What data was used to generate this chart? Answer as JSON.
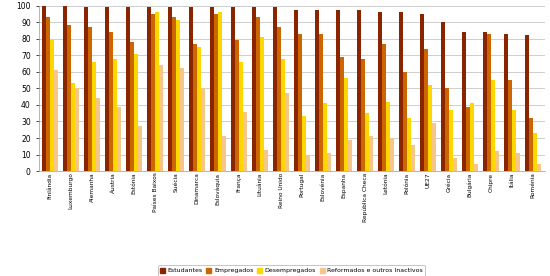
{
  "countries": [
    "Finlândia",
    "Luxemburgo",
    "Alemanha",
    "Áustria",
    "Estónia",
    "Países Baixos",
    "Suécia",
    "Dinamarca",
    "Eslováquia",
    "França",
    "Lituânia",
    "Reino Unido",
    "Portugal",
    "Eslovénia",
    "Espanha",
    "República Checa",
    "Letónia",
    "Polónia",
    "UE27",
    "Grécia",
    "Bulgária",
    "Chipre",
    "Itália",
    "Roménia"
  ],
  "series": {
    "Estudantes": [
      100,
      100,
      99,
      99,
      99,
      99,
      99,
      99,
      99,
      99,
      99,
      99,
      97,
      97,
      97,
      97,
      96,
      96,
      95,
      90,
      84,
      84,
      83,
      82
    ],
    "Empregados": [
      93,
      88,
      87,
      84,
      78,
      95,
      93,
      77,
      95,
      79,
      93,
      87,
      83,
      83,
      69,
      68,
      77,
      60,
      74,
      50,
      39,
      83,
      55,
      32
    ],
    "Desempregados": [
      79,
      53,
      66,
      68,
      71,
      96,
      91,
      75,
      96,
      66,
      81,
      68,
      33,
      41,
      56,
      35,
      42,
      32,
      52,
      37,
      41,
      55,
      37,
      23
    ],
    "Reformados e outros Inactivos": [
      61,
      50,
      44,
      39,
      27,
      64,
      62,
      50,
      21,
      36,
      13,
      47,
      10,
      11,
      19,
      21,
      20,
      16,
      29,
      8,
      4,
      12,
      11,
      4
    ]
  },
  "colors": {
    "Estudantes": "#8B2500",
    "Empregados": "#CC6600",
    "Desempregados": "#FFD700",
    "Reformados e outros Inactivos": "#F5C58A"
  },
  "ylim": [
    0,
    100
  ],
  "yticks": [
    0,
    10,
    20,
    30,
    40,
    50,
    60,
    70,
    80,
    90,
    100
  ],
  "bar_width": 0.19,
  "background_color": "#FFFFFF",
  "grid_color": "#BBBBBB"
}
